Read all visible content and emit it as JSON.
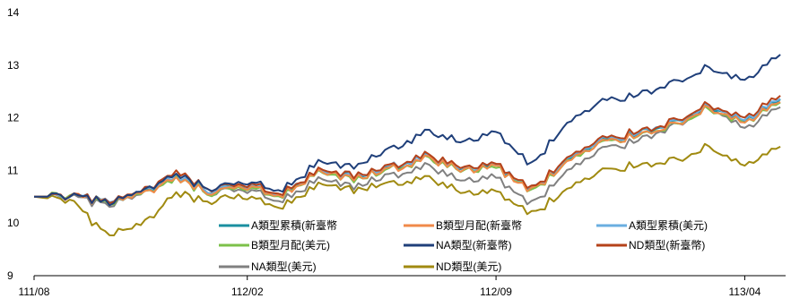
{
  "chart_data": {
    "type": "line",
    "title": "",
    "xlabel": "",
    "ylabel": "",
    "ylim": [
      9,
      14
    ],
    "yticks": [
      9,
      10,
      11,
      12,
      13,
      14
    ],
    "xticks": [
      "111/08",
      "112/02",
      "112/09",
      "113/04"
    ],
    "xrange": [
      "111/08",
      "113/05"
    ],
    "grid": false,
    "legend_position": "bottom-center",
    "series": [
      {
        "name": "A類型累積(新臺幣",
        "color": "#1a8fa0",
        "points": [
          [
            "111/08",
            10.5
          ],
          [
            "111/09",
            10.5
          ],
          [
            "111/10",
            10.42
          ],
          [
            "111/11",
            10.52
          ],
          [
            "111/12",
            10.85
          ],
          [
            "112/01",
            10.58
          ],
          [
            "112/02",
            10.7
          ],
          [
            "112/03",
            10.55
          ],
          [
            "112/04",
            10.95
          ],
          [
            "112/05",
            10.85
          ],
          [
            "112/06",
            11.05
          ],
          [
            "112/07",
            11.25
          ],
          [
            "112/08",
            11.05
          ],
          [
            "112/09",
            11.1
          ],
          [
            "112/10",
            10.62
          ],
          [
            "112/11",
            11.2
          ],
          [
            "112/12",
            11.55
          ],
          [
            "113/01",
            11.72
          ],
          [
            "113/02",
            11.92
          ],
          [
            "113/03",
            12.22
          ],
          [
            "113/04",
            11.95
          ],
          [
            "113/05",
            12.35
          ]
        ]
      },
      {
        "name": "B類型月配(新臺幣",
        "color": "#f08a4a",
        "points": [
          [
            "111/08",
            10.5
          ],
          [
            "111/09",
            10.5
          ],
          [
            "111/10",
            10.41
          ],
          [
            "111/11",
            10.51
          ],
          [
            "111/12",
            10.83
          ],
          [
            "112/01",
            10.56
          ],
          [
            "112/02",
            10.68
          ],
          [
            "112/03",
            10.53
          ],
          [
            "112/04",
            10.93
          ],
          [
            "112/05",
            10.83
          ],
          [
            "112/06",
            11.02
          ],
          [
            "112/07",
            11.22
          ],
          [
            "112/08",
            11.02
          ],
          [
            "112/09",
            11.07
          ],
          [
            "112/10",
            10.6
          ],
          [
            "112/11",
            11.17
          ],
          [
            "112/12",
            11.52
          ],
          [
            "113/01",
            11.68
          ],
          [
            "113/02",
            11.88
          ],
          [
            "113/03",
            12.18
          ],
          [
            "113/04",
            11.92
          ],
          [
            "113/05",
            12.3
          ]
        ]
      },
      {
        "name": "A類型累積(美元)",
        "color": "#6aaee0",
        "points": [
          [
            "111/08",
            10.5
          ],
          [
            "111/09",
            10.5
          ],
          [
            "111/10",
            10.43
          ],
          [
            "111/11",
            10.53
          ],
          [
            "111/12",
            10.86
          ],
          [
            "112/01",
            10.59
          ],
          [
            "112/02",
            10.71
          ],
          [
            "112/03",
            10.56
          ],
          [
            "112/04",
            10.96
          ],
          [
            "112/05",
            10.86
          ],
          [
            "112/06",
            11.06
          ],
          [
            "112/07",
            11.26
          ],
          [
            "112/08",
            11.06
          ],
          [
            "112/09",
            11.11
          ],
          [
            "112/10",
            10.63
          ],
          [
            "112/11",
            11.21
          ],
          [
            "112/12",
            11.56
          ],
          [
            "113/01",
            11.73
          ],
          [
            "113/02",
            11.93
          ],
          [
            "113/03",
            12.23
          ],
          [
            "113/04",
            11.96
          ],
          [
            "113/05",
            12.36
          ]
        ]
      },
      {
        "name": "B類型月配(美元)",
        "color": "#7cc04a",
        "points": [
          [
            "111/08",
            10.5
          ],
          [
            "111/09",
            10.5
          ],
          [
            "111/10",
            10.4
          ],
          [
            "111/11",
            10.5
          ],
          [
            "111/12",
            10.82
          ],
          [
            "112/01",
            10.55
          ],
          [
            "112/02",
            10.67
          ],
          [
            "112/03",
            10.52
          ],
          [
            "112/04",
            10.92
          ],
          [
            "112/05",
            10.82
          ],
          [
            "112/06",
            11.01
          ],
          [
            "112/07",
            11.21
          ],
          [
            "112/08",
            11.01
          ],
          [
            "112/09",
            11.06
          ],
          [
            "112/10",
            10.59
          ],
          [
            "112/11",
            11.16
          ],
          [
            "112/12",
            11.51
          ],
          [
            "113/01",
            11.67
          ],
          [
            "113/02",
            11.87
          ],
          [
            "113/03",
            12.17
          ],
          [
            "113/04",
            11.91
          ],
          [
            "113/05",
            12.29
          ]
        ]
      },
      {
        "name": "NA類型(新臺幣)",
        "color": "#1f3f7a",
        "points": [
          [
            "111/08",
            10.5
          ],
          [
            "111/09",
            10.5
          ],
          [
            "111/10",
            10.4
          ],
          [
            "111/11",
            10.55
          ],
          [
            "111/12",
            10.9
          ],
          [
            "112/01",
            10.62
          ],
          [
            "112/02",
            10.78
          ],
          [
            "112/03",
            10.62
          ],
          [
            "112/04",
            11.12
          ],
          [
            "112/05",
            11.05
          ],
          [
            "112/06",
            11.4
          ],
          [
            "112/07",
            11.72
          ],
          [
            "112/08",
            11.55
          ],
          [
            "112/09",
            11.72
          ],
          [
            "112/10",
            11.1
          ],
          [
            "112/11",
            11.9
          ],
          [
            "112/12",
            12.3
          ],
          [
            "113/01",
            12.45
          ],
          [
            "113/02",
            12.68
          ],
          [
            "113/03",
            12.95
          ],
          [
            "113/04",
            12.72
          ],
          [
            "113/05",
            13.2
          ]
        ]
      },
      {
        "name": "ND類型(新臺幣)",
        "color": "#b5421a",
        "points": [
          [
            "111/08",
            10.5
          ],
          [
            "111/09",
            10.5
          ],
          [
            "111/10",
            10.42
          ],
          [
            "111/11",
            10.55
          ],
          [
            "111/12",
            10.95
          ],
          [
            "112/01",
            10.62
          ],
          [
            "112/02",
            10.73
          ],
          [
            "112/03",
            10.58
          ],
          [
            "112/04",
            10.98
          ],
          [
            "112/05",
            10.88
          ],
          [
            "112/06",
            11.08
          ],
          [
            "112/07",
            11.28
          ],
          [
            "112/08",
            11.08
          ],
          [
            "112/09",
            11.13
          ],
          [
            "112/10",
            10.65
          ],
          [
            "112/11",
            11.23
          ],
          [
            "112/12",
            11.58
          ],
          [
            "113/01",
            11.75
          ],
          [
            "113/02",
            11.95
          ],
          [
            "113/03",
            12.25
          ],
          [
            "113/04",
            12.0
          ],
          [
            "113/05",
            12.42
          ]
        ]
      },
      {
        "name": "NA類型(美元)",
        "color": "#808080",
        "points": [
          [
            "111/08",
            10.5
          ],
          [
            "111/09",
            10.48
          ],
          [
            "111/10",
            10.36
          ],
          [
            "111/11",
            10.5
          ],
          [
            "111/12",
            10.85
          ],
          [
            "112/01",
            10.55
          ],
          [
            "112/02",
            10.62
          ],
          [
            "112/03",
            10.42
          ],
          [
            "112/04",
            10.8
          ],
          [
            "112/05",
            10.68
          ],
          [
            "112/06",
            10.9
          ],
          [
            "112/07",
            11.08
          ],
          [
            "112/08",
            10.82
          ],
          [
            "112/09",
            10.88
          ],
          [
            "112/10",
            10.35
          ],
          [
            "112/11",
            10.98
          ],
          [
            "112/12",
            11.4
          ],
          [
            "113/01",
            11.58
          ],
          [
            "113/02",
            11.85
          ],
          [
            "113/03",
            12.22
          ],
          [
            "113/04",
            11.8
          ],
          [
            "113/05",
            12.2
          ]
        ]
      },
      {
        "name": "ND類型(美元)",
        "color": "#a08a10",
        "points": [
          [
            "111/08",
            10.5
          ],
          [
            "111/09",
            10.42
          ],
          [
            "111/10",
            9.8
          ],
          [
            "111/11",
            9.92
          ],
          [
            "111/12",
            10.55
          ],
          [
            "112/01",
            10.4
          ],
          [
            "112/02",
            10.5
          ],
          [
            "112/03",
            10.32
          ],
          [
            "112/04",
            10.7
          ],
          [
            "112/05",
            10.62
          ],
          [
            "112/06",
            10.75
          ],
          [
            "112/07",
            10.85
          ],
          [
            "112/08",
            10.6
          ],
          [
            "112/09",
            10.6
          ],
          [
            "112/10",
            10.15
          ],
          [
            "112/11",
            10.65
          ],
          [
            "112/12",
            10.98
          ],
          [
            "113/01",
            11.1
          ],
          [
            "113/02",
            11.2
          ],
          [
            "113/03",
            11.45
          ],
          [
            "113/04",
            11.08
          ],
          [
            "113/05",
            11.45
          ]
        ]
      }
    ]
  }
}
